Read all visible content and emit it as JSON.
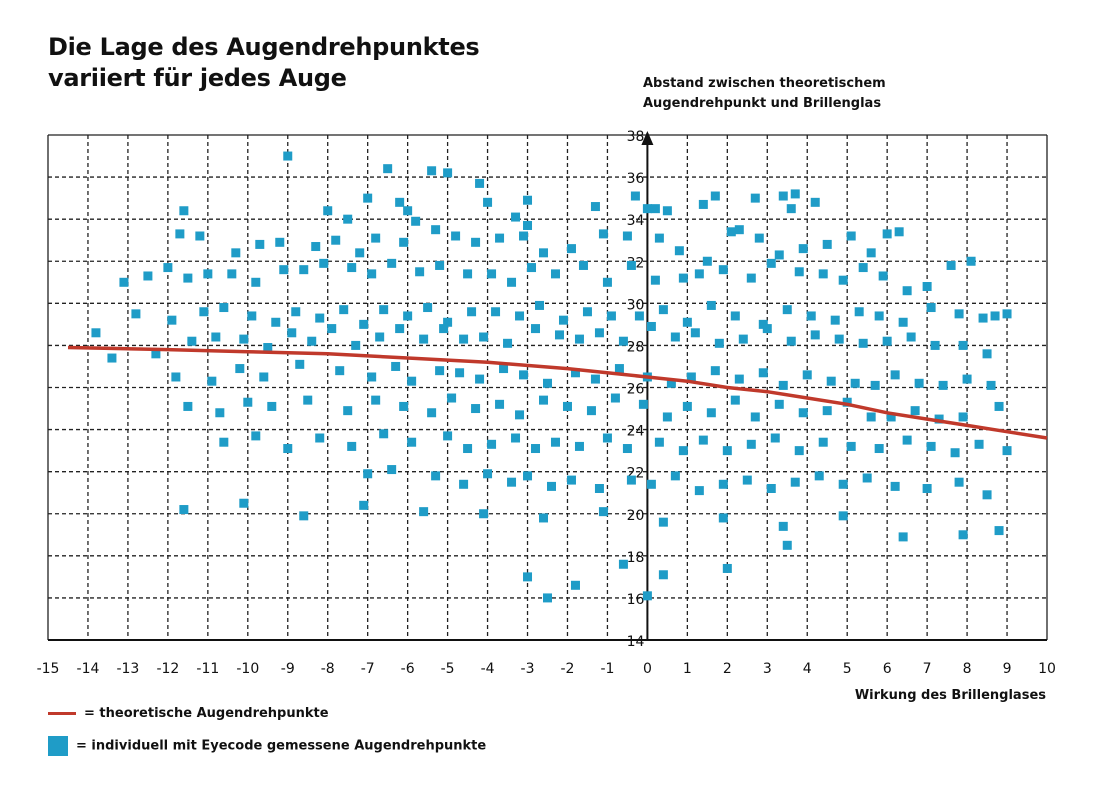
{
  "title_line1": "Die Lage des Augendrehpunktes",
  "title_line2": "variiert für jedes Auge",
  "ylabel_line1": "Abstand zwischen theoretischem",
  "ylabel_line2": "Augendrehpunkt und Brillenglas",
  "xlabel": "Wirkung des Brillenglases",
  "legend": {
    "line_label": "= theoretische Augendrehpunkte",
    "points_label": "= individuell mit Eyecode gemessene Augendrehpunkte"
  },
  "colors": {
    "line": "#c0392b",
    "points": "#1f9cc7",
    "grid": "#222222"
  },
  "chart_data": {
    "type": "scatter",
    "xlim": [
      -15,
      10
    ],
    "ylim": [
      14,
      38
    ],
    "x_ticks": [
      "-15",
      "-14",
      "-13",
      "-12",
      "-11",
      "-10",
      "-9",
      "-8",
      "-7",
      "-6",
      "-5",
      "-4",
      "-3",
      "-2",
      "-1",
      "0",
      "1",
      "2",
      "3",
      "4",
      "5",
      "6",
      "7",
      "8",
      "9",
      "10"
    ],
    "y_ticks": [
      "14",
      "16",
      "18",
      "20",
      "22",
      "24",
      "26",
      "28",
      "30",
      "32",
      "34",
      "36",
      "38"
    ],
    "grid": true,
    "legend_position": "bottom-left",
    "series": [
      {
        "name": "theoretische Augendrehpunkte",
        "kind": "line",
        "x": [
          -14.5,
          -12,
          -10,
          -8,
          -6,
          -4,
          -2,
          0,
          1,
          2,
          3,
          4,
          5,
          6,
          7,
          8,
          9,
          10
        ],
        "y": [
          27.9,
          27.8,
          27.7,
          27.6,
          27.4,
          27.2,
          26.9,
          26.5,
          26.3,
          26.0,
          25.8,
          25.5,
          25.2,
          24.8,
          24.5,
          24.2,
          23.9,
          23.6
        ]
      },
      {
        "name": "individuell mit Eyecode gemessene Augendrehpunkte",
        "kind": "scatter",
        "x": [
          -9.0,
          -6.5,
          -5.4,
          -5.0,
          -4.2,
          -3.0,
          -1.3,
          -0.3,
          0.5,
          1.7,
          3.4,
          3.7,
          4.2,
          -11.6,
          -8.0,
          -7.5,
          -7.0,
          -6.2,
          -6.0,
          -5.8,
          -4.0,
          -3.3,
          -3.0,
          0.0,
          0.2,
          1.4,
          2.3,
          2.7,
          3.6,
          6.0,
          -11.7,
          -11.2,
          -10.3,
          -9.7,
          -9.2,
          -8.3,
          -7.8,
          -7.2,
          -6.8,
          -6.1,
          -5.3,
          -4.8,
          -4.3,
          -3.7,
          -3.1,
          -2.6,
          -1.9,
          -1.1,
          -0.5,
          0.3,
          0.8,
          1.5,
          2.1,
          2.8,
          3.3,
          3.9,
          4.5,
          5.1,
          5.6,
          6.3,
          -13.1,
          -12.5,
          -12.0,
          -11.5,
          -11.0,
          -10.4,
          -9.8,
          -9.1,
          -8.6,
          -8.1,
          -7.4,
          -6.9,
          -6.4,
          -5.7,
          -5.2,
          -4.5,
          -3.9,
          -3.4,
          -2.9,
          -2.3,
          -1.6,
          -1.0,
          -0.4,
          0.2,
          0.9,
          1.3,
          1.9,
          2.6,
          3.1,
          3.8,
          4.4,
          4.9,
          5.4,
          5.9,
          6.5,
          7.0,
          7.6,
          8.1,
          8.7,
          -13.8,
          -12.8,
          -11.9,
          -11.1,
          -10.6,
          -9.9,
          -9.3,
          -8.8,
          -8.2,
          -7.6,
          -7.1,
          -6.6,
          -6.0,
          -5.5,
          -5.0,
          -4.4,
          -3.8,
          -3.2,
          -2.7,
          -2.1,
          -1.5,
          -0.9,
          -0.2,
          0.4,
          1.0,
          1.6,
          2.2,
          2.9,
          3.5,
          4.1,
          4.7,
          5.3,
          5.8,
          6.4,
          7.1,
          7.8,
          8.4,
          9.0,
          -13.4,
          -12.3,
          -11.4,
          -10.8,
          -10.1,
          -9.5,
          -8.9,
          -8.4,
          -7.9,
          -7.3,
          -6.7,
          -6.2,
          -5.6,
          -5.1,
          -4.6,
          -4.1,
          -3.5,
          -2.8,
          -2.2,
          -1.7,
          -1.2,
          -0.6,
          0.1,
          0.7,
          1.2,
          1.8,
          2.4,
          3.0,
          3.6,
          4.2,
          4.8,
          5.4,
          6.0,
          6.6,
          7.2,
          7.9,
          8.5,
          -11.8,
          -10.9,
          -10.2,
          -9.6,
          -8.7,
          -7.7,
          -6.9,
          -6.3,
          -5.9,
          -5.2,
          -4.7,
          -4.2,
          -3.6,
          -3.1,
          -2.5,
          -1.8,
          -1.3,
          -0.7,
          0.0,
          0.6,
          1.1,
          1.7,
          2.3,
          2.9,
          3.4,
          4.0,
          4.6,
          5.2,
          5.7,
          6.2,
          6.8,
          7.4,
          8.0,
          8.6,
          -11.5,
          -10.7,
          -10.0,
          -9.4,
          -8.5,
          -7.5,
          -6.8,
          -6.1,
          -5.4,
          -4.9,
          -4.3,
          -3.7,
          -3.2,
          -2.6,
          -2.0,
          -1.4,
          -0.8,
          -0.1,
          0.5,
          1.0,
          1.6,
          2.2,
          2.7,
          3.3,
          3.9,
          4.5,
          5.0,
          5.6,
          6.1,
          6.7,
          7.3,
          7.9,
          8.8,
          -10.6,
          -9.8,
          -9.0,
          -8.2,
          -7.4,
          -6.6,
          -5.9,
          -5.0,
          -4.5,
          -3.9,
          -3.3,
          -2.8,
          -2.3,
          -1.7,
          -1.0,
          -0.5,
          0.3,
          0.9,
          1.4,
          2.0,
          2.6,
          3.2,
          3.8,
          4.4,
          5.1,
          5.8,
          6.5,
          7.1,
          7.7,
          8.3,
          9.0,
          -7.0,
          -6.4,
          -5.3,
          -4.6,
          -4.0,
          -3.4,
          -3.0,
          -2.4,
          -1.9,
          -1.2,
          -0.4,
          0.1,
          0.7,
          1.3,
          1.9,
          2.5,
          3.1,
          3.7,
          4.3,
          4.9,
          5.5,
          6.2,
          7.0,
          7.8,
          8.5,
          -3.0,
          -2.5,
          -1.8,
          -0.6,
          0.0,
          0.4,
          2.0,
          3.5,
          8.8,
          -11.6,
          -10.1,
          -8.6,
          -7.1,
          -5.6,
          -4.1,
          -2.6,
          -1.1,
          0.4,
          1.9,
          3.4,
          4.9,
          6.4,
          7.9
        ],
        "y": [
          37.0,
          36.4,
          36.3,
          36.2,
          35.7,
          34.9,
          34.6,
          35.1,
          34.4,
          35.1,
          35.1,
          35.2,
          34.8,
          34.4,
          34.4,
          34.0,
          35.0,
          34.8,
          34.4,
          33.9,
          34.8,
          34.1,
          33.7,
          34.5,
          34.5,
          34.7,
          33.5,
          35.0,
          34.5,
          33.3,
          33.3,
          33.2,
          32.4,
          32.8,
          32.9,
          32.7,
          33.0,
          32.4,
          33.1,
          32.9,
          33.5,
          33.2,
          32.9,
          33.1,
          33.2,
          32.4,
          32.6,
          33.3,
          33.2,
          33.1,
          32.5,
          32.0,
          33.4,
          33.1,
          32.3,
          32.6,
          32.8,
          33.2,
          32.4,
          33.4,
          31.0,
          31.3,
          31.7,
          31.2,
          31.4,
          31.4,
          31.0,
          31.6,
          31.6,
          31.9,
          31.7,
          31.4,
          31.9,
          31.5,
          31.8,
          31.4,
          31.4,
          31.0,
          31.7,
          31.4,
          31.8,
          31.0,
          31.8,
          31.1,
          31.2,
          31.4,
          31.6,
          31.2,
          31.9,
          31.5,
          31.4,
          31.1,
          31.7,
          31.3,
          30.6,
          30.8,
          31.8,
          32.0,
          29.4,
          28.6,
          29.5,
          29.2,
          29.6,
          29.8,
          29.4,
          29.1,
          29.6,
          29.3,
          29.7,
          29.0,
          29.7,
          29.4,
          29.8,
          29.1,
          29.6,
          29.6,
          29.4,
          29.9,
          29.2,
          29.6,
          29.4,
          29.4,
          29.7,
          29.1,
          29.9,
          29.4,
          29.0,
          29.7,
          29.4,
          29.2,
          29.6,
          29.4,
          29.1,
          29.8,
          29.5,
          29.3,
          29.5,
          27.4,
          27.6,
          28.2,
          28.4,
          28.3,
          27.9,
          28.6,
          28.2,
          28.8,
          28.0,
          28.4,
          28.8,
          28.3,
          28.8,
          28.3,
          28.4,
          28.1,
          28.8,
          28.5,
          28.3,
          28.6,
          28.2,
          28.9,
          28.4,
          28.6,
          28.1,
          28.3,
          28.8,
          28.2,
          28.5,
          28.3,
          28.1,
          28.2,
          28.4,
          28.0,
          28.0,
          27.6,
          26.5,
          26.3,
          26.9,
          26.5,
          27.1,
          26.8,
          26.5,
          27.0,
          26.3,
          26.8,
          26.7,
          26.4,
          26.9,
          26.6,
          26.2,
          26.7,
          26.4,
          26.9,
          26.5,
          26.2,
          26.5,
          26.8,
          26.4,
          26.7,
          26.1,
          26.6,
          26.3,
          26.2,
          26.1,
          26.6,
          26.2,
          26.1,
          26.4,
          26.1,
          25.1,
          24.8,
          25.3,
          25.1,
          25.4,
          24.9,
          25.4,
          25.1,
          24.8,
          25.5,
          25.0,
          25.2,
          24.7,
          25.4,
          25.1,
          24.9,
          25.5,
          25.2,
          24.6,
          25.1,
          24.8,
          25.4,
          24.6,
          25.2,
          24.8,
          24.9,
          25.3,
          24.6,
          24.6,
          24.9,
          24.5,
          24.6,
          25.1,
          23.4,
          23.7,
          23.1,
          23.6,
          23.2,
          23.8,
          23.4,
          23.7,
          23.1,
          23.3,
          23.6,
          23.1,
          23.4,
          23.2,
          23.6,
          23.1,
          23.4,
          23.0,
          23.5,
          23.0,
          23.3,
          23.6,
          23.0,
          23.4,
          23.2,
          23.1,
          23.5,
          23.2,
          22.9,
          23.3,
          23.0,
          21.9,
          22.1,
          21.8,
          21.4,
          21.9,
          21.5,
          21.8,
          21.3,
          21.6,
          21.2,
          21.6,
          21.4,
          21.8,
          21.1,
          21.4,
          21.6,
          21.2,
          21.5,
          21.8,
          21.4,
          21.7,
          21.3,
          21.2,
          21.5,
          20.9,
          17.0,
          16.0,
          16.6,
          17.6,
          16.1,
          17.1,
          17.4,
          18.5,
          19.2,
          20.2,
          20.5,
          19.9,
          20.4,
          20.1,
          20.0,
          19.8,
          20.1,
          19.6,
          19.8,
          19.4,
          19.9,
          18.9,
          19.0
        ]
      }
    ]
  }
}
